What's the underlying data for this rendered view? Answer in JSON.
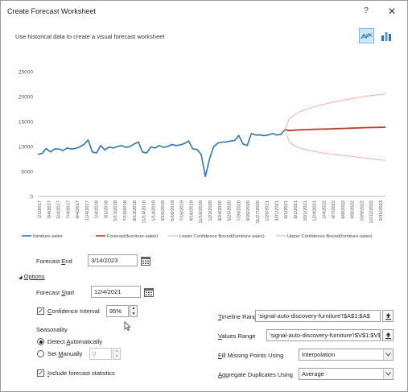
{
  "window": {
    "title": "Create Forecast Worksheet",
    "help_label": "?",
    "close_label": "✕",
    "subtitle": "Use historical data to create a visual forecast worksheet"
  },
  "chart_type_buttons": [
    {
      "name": "line-chart",
      "selected": true
    },
    {
      "name": "column-chart",
      "selected": false
    }
  ],
  "chart_data": {
    "type": "line",
    "ylim": [
      0,
      25000
    ],
    "y_ticks": [
      "0",
      "5000",
      "10000",
      "15000",
      "20000",
      "25000"
    ],
    "x_ticks": [
      "1/1/2017",
      "3/4/2017",
      "5/4/2017",
      "7/4/2017",
      "9/4/2017",
      "11/4/2017",
      "1/4/2018",
      "3/1/2018",
      "5/13/2018",
      "7/13/2018",
      "9/13/2018",
      "11/14/2018",
      "1/14/2019",
      "3/16/2019",
      "5/16/2019",
      "7/16/2019",
      "9/16/2019",
      "11/16/2019",
      "1/23/2020",
      "3/24/2020",
      "5/25/2020",
      "7/26/2020",
      "9/26/2020",
      "11/27/2020",
      "1/28/2021",
      "3/31/2021",
      "6/1/2021",
      "8/1/2021",
      "10/1/2021",
      "12/4/2021",
      "2/4/2022",
      "4/7/2022",
      "6/8/2022",
      "8/8/2022",
      "10/9/2022",
      "12/11/2022",
      "2/11/2023"
    ],
    "series": [
      {
        "name": "furniture-sales",
        "color": "#2e75b6",
        "x_start": 0,
        "values": [
          8400,
          8600,
          9600,
          8900,
          9500,
          9500,
          9200,
          9700,
          9500,
          9600,
          9900,
          10400,
          11300,
          8900,
          8700,
          10200,
          9300,
          9900,
          9700,
          10000,
          10200,
          9800,
          10000,
          10500,
          10900,
          8900,
          8700,
          9900,
          9700,
          10200,
          9800,
          10000,
          10400,
          10200,
          10300,
          10600,
          11100,
          9500,
          9400,
          8400,
          4000,
          7500,
          10000,
          10700,
          10900,
          10900,
          11100,
          11200,
          12200,
          10500,
          10200,
          12600,
          12300,
          12300,
          12200,
          12300,
          12600,
          12300,
          12400,
          13400
        ]
      },
      {
        "name": "Forecast(furniture-sales)",
        "color": "#c0392b",
        "x_start": 59,
        "values": [
          13400,
          13200,
          13250,
          13300,
          13350,
          13380,
          13400,
          13430,
          13460,
          13480,
          13500,
          13530,
          13560,
          13590,
          13620,
          13650,
          13680,
          13710,
          13740,
          13770,
          13790,
          13810,
          13830,
          13850,
          13870
        ]
      },
      {
        "name": "Lower Confidence Bound(furniture-sales)",
        "color": "#f0a99a",
        "x_start": 59,
        "values": [
          13400,
          11000,
          10300,
          9900,
          9600,
          9400,
          9200,
          9000,
          8850,
          8700,
          8600,
          8500,
          8400,
          8300,
          8200,
          8100,
          8000,
          7900,
          7800,
          7700,
          7600,
          7500,
          7400,
          7300,
          7200
        ]
      },
      {
        "name": "Upper Confidence Bound(furniture-sales)",
        "color": "#f0a99a",
        "x_start": 59,
        "values": [
          13400,
          15500,
          16200,
          16700,
          17100,
          17400,
          17700,
          18000,
          18200,
          18400,
          18600,
          18800,
          19000,
          19150,
          19300,
          19450,
          19600,
          19750,
          19900,
          20050,
          20150,
          20250,
          20350,
          20450,
          20550
        ]
      }
    ],
    "x_count": 84,
    "grid": false,
    "legend": "bottom"
  },
  "form": {
    "forecast_end": {
      "label": "Forecast End",
      "value": "3/14/2023"
    },
    "options_label": "Options",
    "forecast_start": {
      "label": "Forecast Start",
      "value": "12/4/2021"
    },
    "confidence": {
      "label": "Confidence Interval",
      "value": "95%",
      "checked": true
    },
    "seasonality_label": "Seasonality",
    "detect_auto_label": "Detect Automatically",
    "set_manually_label": "Set Manually",
    "set_manually_value": "0",
    "include_stats_label": "Include forecast statistics",
    "timeline_range": {
      "label": "Timeline Range",
      "value": "'signal-auto-discovery-furniture'!$A$1:$A$"
    },
    "values_range": {
      "label": "Values Range",
      "value": "'signal-auto-discovery-furniture'!$V$1:$V$"
    },
    "fill_missing": {
      "label": "Fill Missing Points Using",
      "value": "Interpolation"
    },
    "aggregate": {
      "label": "Aggregate Duplicates Using",
      "value": "Average"
    }
  }
}
